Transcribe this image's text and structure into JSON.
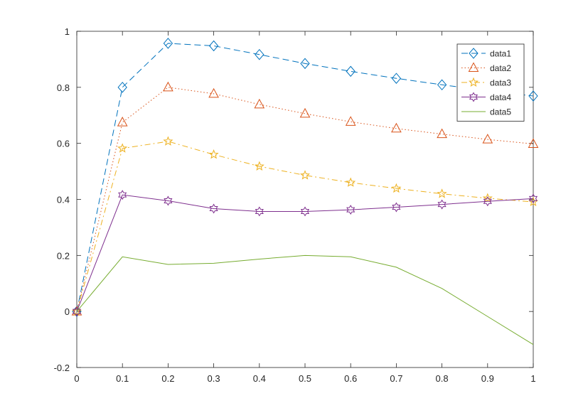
{
  "chart_data": {
    "type": "line",
    "title": "",
    "xlabel": "",
    "ylabel": "",
    "xlim": [
      0,
      1
    ],
    "ylim": [
      -0.2,
      1
    ],
    "x": [
      0,
      0.1,
      0.2,
      0.3,
      0.4,
      0.5,
      0.6,
      0.7,
      0.8,
      0.9,
      1
    ],
    "xticks": [
      "0",
      "0.1",
      "0.2",
      "0.3",
      "0.4",
      "0.5",
      "0.6",
      "0.7",
      "0.8",
      "0.9",
      "1"
    ],
    "yticks": [
      "-0.2",
      "0",
      "0.2",
      "0.4",
      "0.6",
      "0.8",
      "1"
    ],
    "grid": false,
    "legend_position": "top-right",
    "series": [
      {
        "name": "data1",
        "color": "#0072BD",
        "line_style": "dashed",
        "marker": "diamond",
        "values": [
          0,
          0.8,
          0.957,
          0.948,
          0.917,
          0.885,
          0.857,
          0.832,
          0.809,
          0.788,
          0.769
        ]
      },
      {
        "name": "data2",
        "color": "#D95319",
        "line_style": "dotted",
        "marker": "triangle",
        "values": [
          0,
          0.675,
          0.8,
          0.777,
          0.739,
          0.706,
          0.677,
          0.653,
          0.633,
          0.614,
          0.598
        ]
      },
      {
        "name": "data3",
        "color": "#EDB120",
        "line_style": "dashdot",
        "marker": "star",
        "values": [
          0,
          0.582,
          0.607,
          0.56,
          0.518,
          0.486,
          0.46,
          0.439,
          0.42,
          0.404,
          0.391
        ]
      },
      {
        "name": "data4",
        "color": "#7E2F8E",
        "line_style": "solid",
        "marker": "hexagram",
        "values": [
          0,
          0.416,
          0.395,
          0.367,
          0.357,
          0.357,
          0.363,
          0.372,
          0.382,
          0.393,
          0.403
        ]
      },
      {
        "name": "data5",
        "color": "#77AC30",
        "line_style": "solid",
        "marker": "none",
        "values": [
          0,
          0.195,
          0.168,
          0.172,
          0.187,
          0.2,
          0.195,
          0.158,
          0.082,
          -0.018,
          -0.118
        ]
      }
    ]
  }
}
